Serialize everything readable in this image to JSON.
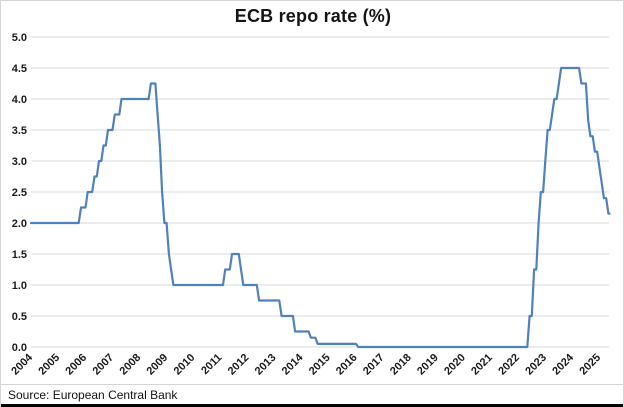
{
  "title": "ECB repo rate (%)",
  "source": "Source: European Central Bank",
  "colors": {
    "line": "#4F81BD",
    "gridline": "#D9D9D9",
    "axis_line": "#D9D9D9",
    "tick_text": "#1a1a1a",
    "title_text": "#151515",
    "frame_border": "#D4D4D8",
    "bottom_bar": "#000000",
    "background": "#FFFFFF"
  },
  "chart_data": {
    "type": "line",
    "title": "ECB repo rate (%)",
    "xlabel": "",
    "ylabel": "",
    "ylim": [
      0.0,
      5.0
    ],
    "ytick_step": 0.5,
    "y_ticks": [
      "5.0",
      "4.5",
      "4.0",
      "3.5",
      "3.0",
      "2.5",
      "2.0",
      "1.5",
      "1.0",
      "0.5",
      "0.0"
    ],
    "x_ticks": [
      "2004",
      "2005",
      "2006",
      "2007",
      "2008",
      "2009",
      "2010",
      "2011",
      "2012",
      "2013",
      "2014",
      "2015",
      "2016",
      "2017",
      "2018",
      "2019",
      "2020",
      "2021",
      "2022",
      "2023",
      "2024",
      "2025"
    ],
    "grid": true,
    "legend": false,
    "series_name": "ECB repo rate (%)",
    "step_points_note": "each entry = [month rate became effective, new rate %]; rate holds until next entry",
    "step_points": [
      [
        "2004-01",
        2.0
      ],
      [
        "2005-12",
        2.25
      ],
      [
        "2006-03",
        2.5
      ],
      [
        "2006-06",
        2.75
      ],
      [
        "2006-08",
        3.0
      ],
      [
        "2006-10",
        3.25
      ],
      [
        "2006-12",
        3.5
      ],
      [
        "2007-03",
        3.75
      ],
      [
        "2007-06",
        4.0
      ],
      [
        "2008-07",
        4.25
      ],
      [
        "2008-10",
        3.75
      ],
      [
        "2008-11",
        3.25
      ],
      [
        "2008-12",
        2.5
      ],
      [
        "2009-01",
        2.0
      ],
      [
        "2009-03",
        1.5
      ],
      [
        "2009-04",
        1.25
      ],
      [
        "2009-05",
        1.0
      ],
      [
        "2011-04",
        1.25
      ],
      [
        "2011-07",
        1.5
      ],
      [
        "2011-11",
        1.25
      ],
      [
        "2011-12",
        1.0
      ],
      [
        "2012-07",
        0.75
      ],
      [
        "2013-05",
        0.5
      ],
      [
        "2013-11",
        0.25
      ],
      [
        "2014-06",
        0.15
      ],
      [
        "2014-09",
        0.05
      ],
      [
        "2016-03",
        0.0
      ],
      [
        "2022-07",
        0.5
      ],
      [
        "2022-09",
        1.25
      ],
      [
        "2022-11",
        2.0
      ],
      [
        "2022-12",
        2.5
      ],
      [
        "2023-02",
        3.0
      ],
      [
        "2023-03",
        3.5
      ],
      [
        "2023-05",
        3.75
      ],
      [
        "2023-06",
        4.0
      ],
      [
        "2023-08",
        4.25
      ],
      [
        "2023-09",
        4.5
      ],
      [
        "2024-06",
        4.25
      ],
      [
        "2024-09",
        3.65
      ],
      [
        "2024-10",
        3.4
      ],
      [
        "2024-12",
        3.15
      ],
      [
        "2025-02",
        2.9
      ],
      [
        "2025-03",
        2.65
      ],
      [
        "2025-04",
        2.4
      ],
      [
        "2025-06",
        2.15
      ]
    ],
    "series_end": [
      "2025-07",
      2.15
    ]
  }
}
